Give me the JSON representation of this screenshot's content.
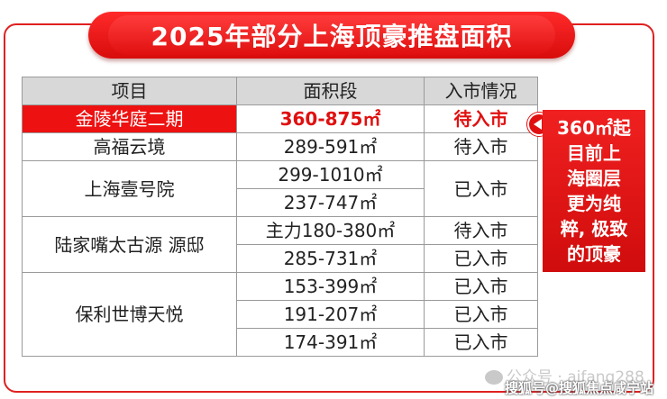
{
  "title": "2025年部分上海顶豪推盘面积",
  "table": {
    "headers": [
      "项目",
      "面积段",
      "入市情况"
    ],
    "rows": [
      {
        "project": "金陵华庭二期",
        "area": "360-875㎡",
        "status": "待入市"
      },
      {
        "project": "高福云境",
        "area": "289-591㎡",
        "status": "待入市"
      },
      {
        "project": "上海壹号院",
        "area": "299-1010㎡",
        "status": "已入市"
      },
      {
        "area": "237-747㎡"
      },
      {
        "project": "陆家嘴太古源 源邸",
        "area": "主力180-380㎡",
        "status": "待入市"
      },
      {
        "area": "285-731㎡",
        "status": "已入市"
      },
      {
        "project": "保利世博天悦",
        "area": "153-399㎡",
        "status": "已入市"
      },
      {
        "area": "191-207㎡",
        "status": "已入市"
      },
      {
        "area": "174-391㎡",
        "status": "已入市"
      }
    ]
  },
  "callout": {
    "lines": [
      "360㎡起",
      "目前上",
      "海圈层",
      "更为纯",
      "粹, 极致",
      "的顶豪"
    ]
  },
  "watermark": "公众号 · aifang288",
  "source": "搜狐号@搜狐焦点咸宁站",
  "colors": {
    "accent": "#e01010",
    "header_bg": "#d8d8d8"
  }
}
